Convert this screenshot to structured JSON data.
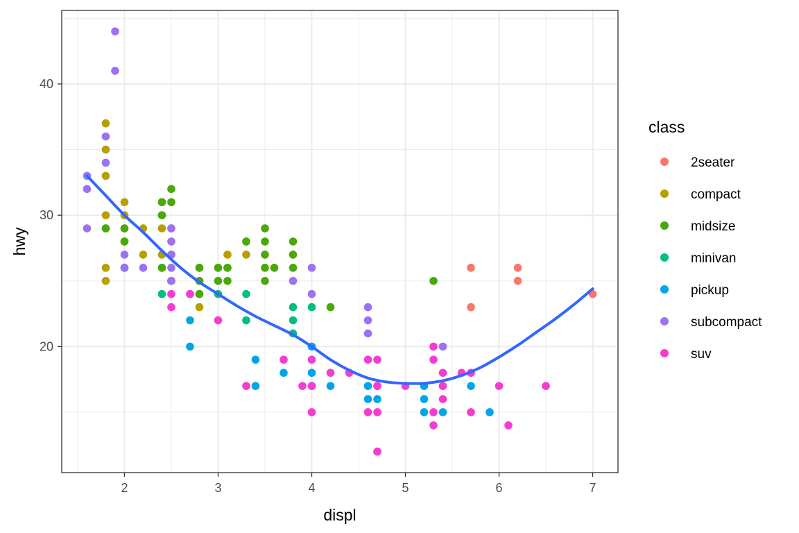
{
  "chart_data": {
    "type": "scatter",
    "xlabel": "displ",
    "ylabel": "hwy",
    "xlim": [
      1.33,
      7.27
    ],
    "ylim": [
      10.4,
      45.6
    ],
    "x_ticks": [
      2,
      3,
      4,
      5,
      6,
      7
    ],
    "y_ticks": [
      20,
      30,
      40
    ],
    "x_tick_labels": [
      "2",
      "3",
      "4",
      "5",
      "6",
      "7"
    ],
    "y_tick_labels": [
      "20",
      "30",
      "40"
    ],
    "grid": true,
    "legend": {
      "title": "class",
      "placement": "right",
      "entries": [
        {
          "label": "2seater",
          "color": "#F8766D"
        },
        {
          "label": "compact",
          "color": "#B79F00"
        },
        {
          "label": "midsize",
          "color": "#4AA80C"
        },
        {
          "label": "minivan",
          "color": "#00BF7D"
        },
        {
          "label": "pickup",
          "color": "#00A5E8"
        },
        {
          "label": "subcompact",
          "color": "#9B72F4"
        },
        {
          "label": "suv",
          "color": "#F53CD1"
        }
      ]
    },
    "series": [
      {
        "name": "2seater",
        "color": "#F8766D",
        "points": [
          [
            5.7,
            26
          ],
          [
            5.7,
            23
          ],
          [
            6.2,
            26
          ],
          [
            6.2,
            25
          ],
          [
            7.0,
            24
          ]
        ]
      },
      {
        "name": "compact",
        "color": "#B79F00",
        "points": [
          [
            1.8,
            37
          ],
          [
            1.8,
            35
          ],
          [
            1.8,
            33
          ],
          [
            1.8,
            30
          ],
          [
            1.8,
            29
          ],
          [
            1.8,
            26
          ],
          [
            1.8,
            25
          ],
          [
            2.0,
            31
          ],
          [
            2.0,
            30
          ],
          [
            2.0,
            29
          ],
          [
            2.0,
            28
          ],
          [
            2.0,
            26
          ],
          [
            2.2,
            29
          ],
          [
            2.2,
            27
          ],
          [
            2.4,
            31
          ],
          [
            2.4,
            30
          ],
          [
            2.4,
            29
          ],
          [
            2.4,
            27
          ],
          [
            2.4,
            26
          ],
          [
            2.5,
            29
          ],
          [
            2.5,
            27
          ],
          [
            2.5,
            25
          ],
          [
            2.8,
            26
          ],
          [
            2.8,
            25
          ],
          [
            2.8,
            24
          ],
          [
            2.8,
            23
          ],
          [
            3.0,
            26
          ],
          [
            3.1,
            27
          ],
          [
            3.1,
            26
          ],
          [
            3.3,
            28
          ],
          [
            3.3,
            27
          ]
        ]
      },
      {
        "name": "midsize",
        "color": "#4AA80C",
        "points": [
          [
            1.8,
            29
          ],
          [
            2.0,
            29
          ],
          [
            2.0,
            28
          ],
          [
            2.0,
            26
          ],
          [
            2.4,
            31
          ],
          [
            2.4,
            30
          ],
          [
            2.4,
            26
          ],
          [
            2.5,
            32
          ],
          [
            2.5,
            31
          ],
          [
            2.5,
            27
          ],
          [
            2.5,
            25
          ],
          [
            2.8,
            26
          ],
          [
            2.8,
            25
          ],
          [
            2.8,
            24
          ],
          [
            3.0,
            26
          ],
          [
            3.0,
            25
          ],
          [
            3.1,
            26
          ],
          [
            3.1,
            25
          ],
          [
            3.3,
            28
          ],
          [
            3.5,
            29
          ],
          [
            3.5,
            28
          ],
          [
            3.5,
            27
          ],
          [
            3.5,
            26
          ],
          [
            3.5,
            25
          ],
          [
            3.6,
            26
          ],
          [
            3.8,
            28
          ],
          [
            3.8,
            27
          ],
          [
            3.8,
            26
          ],
          [
            4.2,
            23
          ],
          [
            5.3,
            25
          ]
        ]
      },
      {
        "name": "minivan",
        "color": "#00BF7D",
        "points": [
          [
            2.4,
            24
          ],
          [
            3.0,
            24
          ],
          [
            3.3,
            24
          ],
          [
            3.3,
            22
          ],
          [
            3.8,
            23
          ],
          [
            3.8,
            22
          ],
          [
            3.8,
            21
          ],
          [
            4.0,
            23
          ]
        ]
      },
      {
        "name": "pickup",
        "color": "#00A5E8",
        "points": [
          [
            2.7,
            22
          ],
          [
            2.7,
            20
          ],
          [
            3.4,
            19
          ],
          [
            3.4,
            17
          ],
          [
            3.7,
            18
          ],
          [
            4.0,
            20
          ],
          [
            4.0,
            18
          ],
          [
            4.0,
            17
          ],
          [
            4.2,
            17
          ],
          [
            4.6,
            17
          ],
          [
            4.6,
            16
          ],
          [
            4.7,
            17
          ],
          [
            4.7,
            16
          ],
          [
            4.7,
            12
          ],
          [
            5.2,
            17
          ],
          [
            5.2,
            16
          ],
          [
            5.2,
            15
          ],
          [
            5.4,
            17
          ],
          [
            5.4,
            15
          ],
          [
            5.7,
            17
          ],
          [
            5.9,
            15
          ]
        ]
      },
      {
        "name": "subcompact",
        "color": "#9B72F4",
        "points": [
          [
            1.6,
            33
          ],
          [
            1.6,
            32
          ],
          [
            1.6,
            29
          ],
          [
            1.8,
            36
          ],
          [
            1.8,
            34
          ],
          [
            1.9,
            44
          ],
          [
            1.9,
            41
          ],
          [
            2.0,
            27
          ],
          [
            2.0,
            26
          ],
          [
            2.2,
            26
          ],
          [
            2.5,
            29
          ],
          [
            2.5,
            28
          ],
          [
            2.5,
            27
          ],
          [
            2.5,
            26
          ],
          [
            2.5,
            25
          ],
          [
            2.7,
            24
          ],
          [
            3.8,
            25
          ],
          [
            4.0,
            26
          ],
          [
            4.0,
            24
          ],
          [
            4.6,
            23
          ],
          [
            4.6,
            22
          ],
          [
            4.6,
            21
          ],
          [
            5.4,
            20
          ]
        ]
      },
      {
        "name": "suv",
        "color": "#F53CD1",
        "points": [
          [
            2.5,
            24
          ],
          [
            2.5,
            23
          ],
          [
            2.7,
            24
          ],
          [
            3.0,
            22
          ],
          [
            3.3,
            17
          ],
          [
            3.7,
            19
          ],
          [
            3.9,
            17
          ],
          [
            4.0,
            19
          ],
          [
            4.0,
            17
          ],
          [
            4.0,
            15
          ],
          [
            4.2,
            18
          ],
          [
            4.4,
            18
          ],
          [
            4.6,
            19
          ],
          [
            4.6,
            15
          ],
          [
            4.7,
            19
          ],
          [
            4.7,
            17
          ],
          [
            4.7,
            15
          ],
          [
            4.7,
            12
          ],
          [
            5.0,
            17
          ],
          [
            5.3,
            20
          ],
          [
            5.3,
            19
          ],
          [
            5.3,
            15
          ],
          [
            5.3,
            14
          ],
          [
            5.4,
            18
          ],
          [
            5.4,
            17
          ],
          [
            5.4,
            16
          ],
          [
            5.6,
            18
          ],
          [
            5.7,
            18
          ],
          [
            5.7,
            15
          ],
          [
            6.0,
            17
          ],
          [
            6.1,
            14
          ],
          [
            6.5,
            17
          ]
        ]
      }
    ],
    "smooth": {
      "color": "#3366FF",
      "x": [
        1.6,
        1.8,
        2.0,
        2.2,
        2.4,
        2.6,
        2.8,
        3.0,
        3.2,
        3.4,
        3.6,
        3.8,
        4.0,
        4.2,
        4.4,
        4.6,
        4.8,
        5.0,
        5.2,
        5.4,
        5.6,
        5.8,
        6.0,
        6.2,
        6.4,
        6.6,
        6.8,
        7.0
      ],
      "y": [
        33.0,
        31.5,
        30.0,
        28.7,
        27.3,
        26.0,
        24.9,
        24.0,
        23.1,
        22.3,
        21.6,
        20.9,
        20.0,
        19.0,
        18.2,
        17.6,
        17.3,
        17.2,
        17.2,
        17.4,
        17.8,
        18.4,
        19.2,
        20.1,
        21.1,
        22.1,
        23.2,
        24.4
      ]
    }
  }
}
